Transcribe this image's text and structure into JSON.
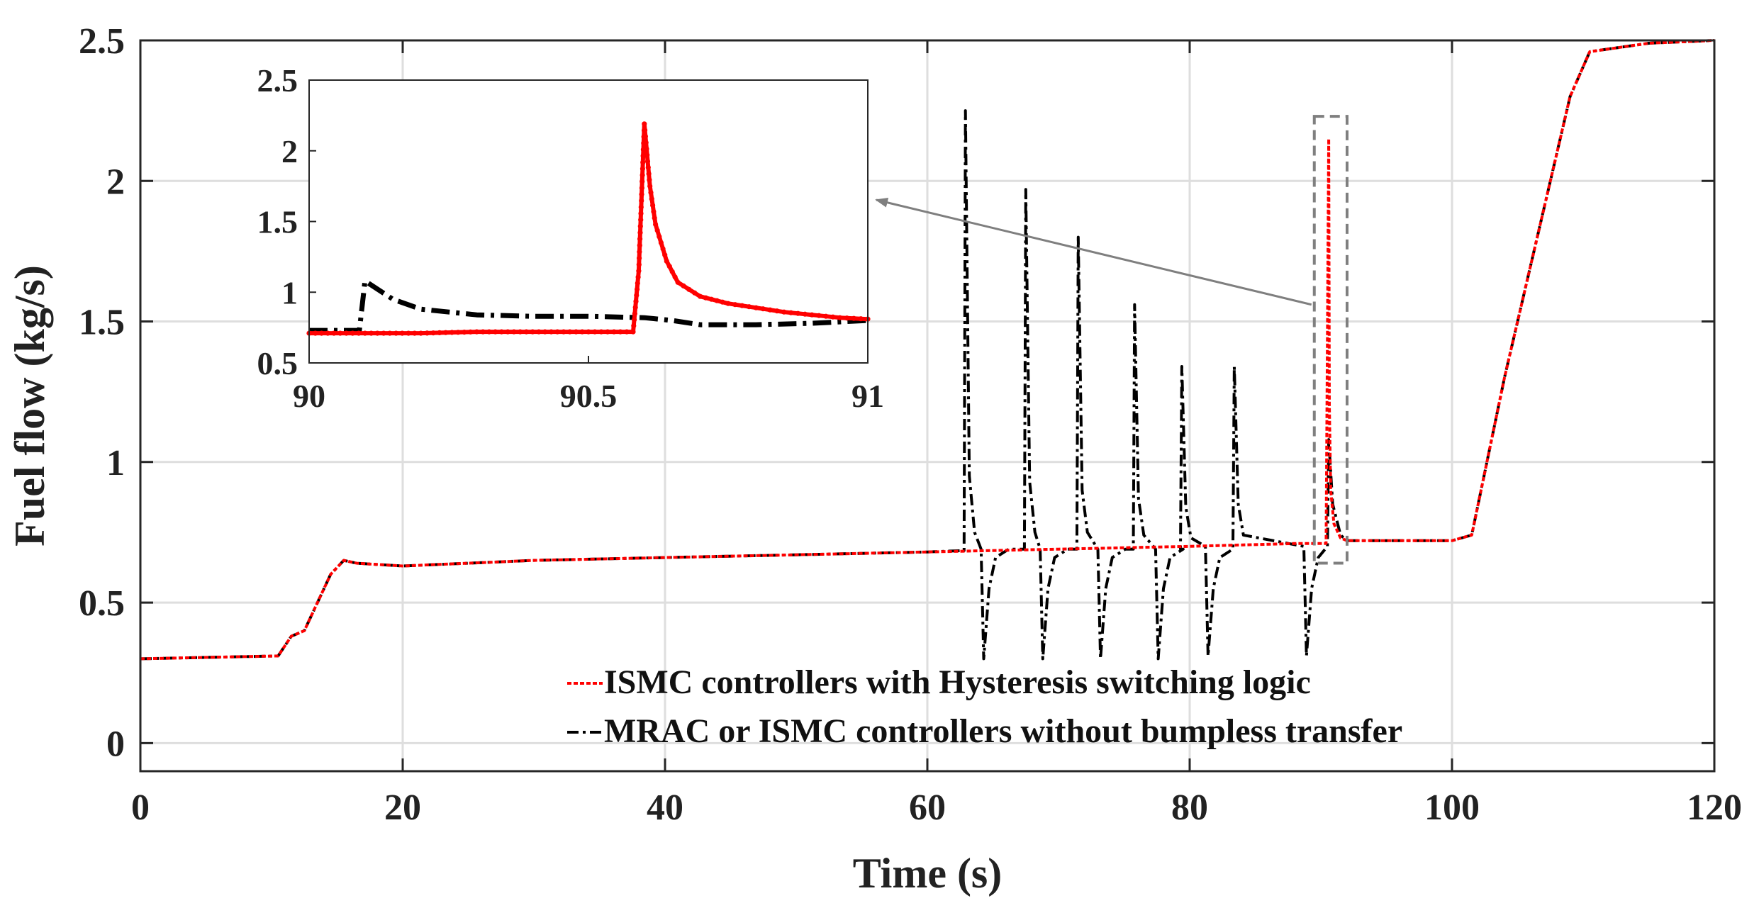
{
  "chart_data": [
    {
      "type": "line",
      "role": "main",
      "xlabel": "Time (s)",
      "ylabel": "Fuel flow (kg/s)",
      "xlim": [
        0,
        120
      ],
      "ylim": [
        -0.1,
        2.5
      ],
      "xticks": [
        0,
        20,
        40,
        60,
        80,
        100,
        120
      ],
      "xtick_labels": [
        "0",
        "20",
        "40",
        "60",
        "80",
        "100",
        "120"
      ],
      "yticks": [
        0,
        0.5,
        1,
        1.5,
        2,
        2.5
      ],
      "ytick_labels": [
        "0",
        "0.5",
        "1",
        "1.5",
        "2",
        "2.5"
      ],
      "grid": true,
      "legend_position": "bottom-right",
      "series": [
        {
          "name": "ISMC controllers with Hysteresis switching logic",
          "color": "#ff0000",
          "style": "dotted",
          "x": [
            0,
            10.5,
            11.5,
            12.5,
            13.5,
            14.5,
            15.5,
            16.5,
            20,
            30,
            40,
            50,
            60,
            70,
            80,
            88,
            90.4,
            90.6,
            90.65,
            90.75,
            91,
            91.5,
            92,
            95,
            100,
            101.5,
            104,
            107,
            109,
            110.5,
            115,
            120
          ],
          "y": [
            0.3,
            0.31,
            0.38,
            0.4,
            0.5,
            0.6,
            0.65,
            0.64,
            0.63,
            0.65,
            0.66,
            0.67,
            0.68,
            0.69,
            0.7,
            0.71,
            0.71,
            2.15,
            1.2,
            0.9,
            0.78,
            0.73,
            0.72,
            0.72,
            0.72,
            0.74,
            1.3,
            1.9,
            2.3,
            2.46,
            2.49,
            2.5
          ]
        },
        {
          "name": "MRAC or ISMC controllers without bumpless transfer",
          "color": "#000000",
          "style": "dash-dot",
          "x": [
            0,
            10.5,
            11.5,
            12.5,
            13.5,
            14.5,
            15.5,
            16.5,
            20,
            30,
            40,
            50,
            60,
            62.8,
            62.9,
            63.2,
            63.6,
            64.1,
            64.3,
            64.7,
            65.2,
            66.2,
            67.4,
            67.5,
            67.8,
            68.2,
            68.6,
            68.8,
            69.2,
            69.7,
            70.7,
            71.4,
            71.5,
            71.8,
            72.2,
            73.0,
            73.2,
            73.6,
            74.1,
            75.1,
            75.7,
            75.8,
            76.1,
            76.5,
            77.4,
            77.6,
            78.0,
            78.5,
            79.5,
            79.3,
            79.4,
            79.7,
            80.1,
            81.2,
            81.4,
            81.8,
            82.3,
            83.3,
            83.3,
            83.4,
            83.7,
            84.1,
            88.7,
            88.9,
            89.3,
            89.8,
            90.5,
            90.6,
            90.9,
            91.5,
            92,
            95,
            100,
            101.5,
            104,
            107,
            109,
            110.5,
            115,
            120
          ],
          "y": [
            0.3,
            0.31,
            0.38,
            0.4,
            0.5,
            0.6,
            0.65,
            0.64,
            0.63,
            0.65,
            0.66,
            0.67,
            0.68,
            0.685,
            2.25,
            0.95,
            0.75,
            0.69,
            0.3,
            0.55,
            0.66,
            0.69,
            0.69,
            1.97,
            0.93,
            0.75,
            0.69,
            0.3,
            0.55,
            0.66,
            0.69,
            0.69,
            1.8,
            0.9,
            0.75,
            0.69,
            0.3,
            0.55,
            0.66,
            0.69,
            0.69,
            1.56,
            0.87,
            0.74,
            0.69,
            0.3,
            0.55,
            0.66,
            0.69,
            0.69,
            1.34,
            0.84,
            0.73,
            0.7,
            0.31,
            0.55,
            0.66,
            0.69,
            0.7,
            1.34,
            0.85,
            0.74,
            0.7,
            0.31,
            0.55,
            0.66,
            0.7,
            1.08,
            0.85,
            0.74,
            0.72,
            0.72,
            0.72,
            0.74,
            1.3,
            1.9,
            2.3,
            2.46,
            2.49,
            2.5
          ]
        }
      ]
    },
    {
      "type": "line",
      "role": "inset",
      "xlim": [
        90,
        91
      ],
      "ylim": [
        0.5,
        2.5
      ],
      "xticks": [
        90,
        90.5,
        91
      ],
      "xtick_labels": [
        "90",
        "90.5",
        "91"
      ],
      "yticks": [
        0.5,
        1,
        1.5,
        2,
        2.5
      ],
      "ytick_labels": [
        "0.5",
        "1",
        "1.5",
        "2",
        "2.5"
      ],
      "grid": false,
      "series": [
        {
          "name": "ISMC controllers with Hysteresis switching logic",
          "color": "#ff0000",
          "style": "dotted-markers",
          "x": [
            90.0,
            90.1,
            90.2,
            90.3,
            90.4,
            90.5,
            90.58,
            90.59,
            90.6,
            90.61,
            90.62,
            90.64,
            90.66,
            90.7,
            90.75,
            90.8,
            90.85,
            90.9,
            90.95,
            91.0
          ],
          "y": [
            0.71,
            0.71,
            0.71,
            0.72,
            0.72,
            0.72,
            0.72,
            1.15,
            2.19,
            1.75,
            1.48,
            1.22,
            1.07,
            0.97,
            0.92,
            0.89,
            0.86,
            0.84,
            0.82,
            0.81
          ]
        },
        {
          "name": "MRAC or ISMC controllers without bumpless transfer",
          "color": "#000000",
          "style": "dash-dot",
          "x": [
            90.0,
            90.09,
            90.1,
            90.15,
            90.2,
            90.3,
            90.4,
            90.5,
            90.6,
            90.65,
            90.7,
            90.8,
            90.9,
            91.0
          ],
          "y": [
            0.73,
            0.73,
            1.08,
            0.95,
            0.88,
            0.84,
            0.83,
            0.83,
            0.82,
            0.8,
            0.77,
            0.77,
            0.78,
            0.8
          ]
        }
      ]
    }
  ]
}
